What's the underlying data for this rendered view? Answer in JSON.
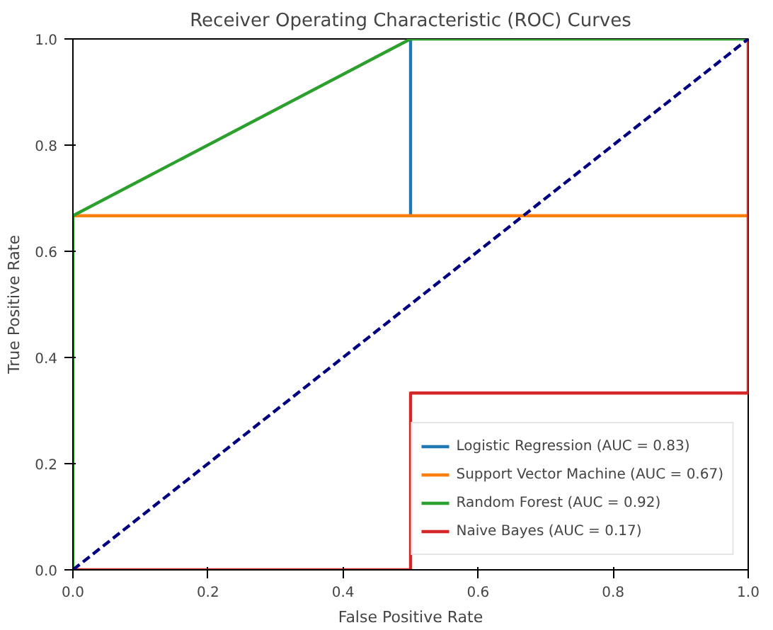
{
  "chart_data": {
    "type": "line",
    "title": "Receiver Operating Characteristic (ROC) Curves",
    "xlabel": "False Positive Rate",
    "ylabel": "True Positive Rate",
    "xlim": [
      0,
      1
    ],
    "ylim": [
      0,
      1
    ],
    "xticks": [
      {
        "value": 0,
        "label": "0.0"
      },
      0.2,
      0.4,
      0.6,
      0.8,
      {
        "value": 1,
        "label": "1.0"
      }
    ],
    "yticks": [
      {
        "value": 0,
        "label": "0.0"
      },
      0.2,
      0.4,
      0.6,
      0.8,
      {
        "value": 1,
        "label": "1.0"
      }
    ],
    "grid": false,
    "legend": "bottom right",
    "marker": "none",
    "series": [
      {
        "name": "Logistic Regression (AUC = 0.83)",
        "color": "#1f77b4",
        "x": [
          0.5,
          0.5
        ],
        "values": [
          0.667,
          1
        ]
      },
      {
        "name": "Support Vector Machine (AUC = 0.67)",
        "color": "#ff7f0e",
        "x": [
          0,
          1
        ],
        "values": [
          0.667,
          0.667
        ]
      },
      {
        "name": "Random Forest (AUC = 0.92)",
        "color": "#2ca02c",
        "x": [
          0,
          0,
          0.5,
          1
        ],
        "values": [
          0,
          0.667,
          1,
          1
        ]
      },
      {
        "name": "Naive Bayes (AUC = 0.17)",
        "color": "#d62728",
        "x": [
          0,
          0.5,
          0.5,
          1,
          1
        ],
        "values": [
          0,
          0,
          0.333,
          0.333,
          1
        ]
      },
      {
        "color": "#000080",
        "x": [
          0,
          1
        ],
        "values": [
          0,
          1
        ],
        "line_style": "dashed"
      }
    ]
  }
}
